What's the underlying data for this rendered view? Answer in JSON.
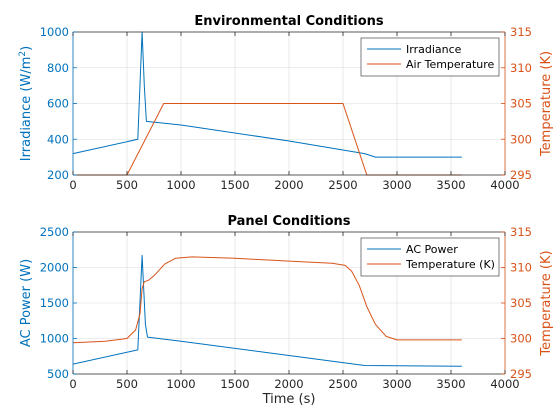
{
  "chart_data": [
    {
      "type": "line",
      "title": "Environmental Conditions",
      "xlabel": "",
      "xlim": [
        0,
        4000
      ],
      "xticks": [
        0,
        500,
        1000,
        1500,
        2000,
        2500,
        3000,
        3500,
        4000
      ],
      "y_left": {
        "label_prefix": "Irradiance (W/m",
        "label_sup": "2",
        "label_suffix": ")",
        "lim": [
          200,
          1000
        ],
        "ticks": [
          200,
          400,
          600,
          800,
          1000
        ],
        "color": "#0072BD"
      },
      "y_right": {
        "label": "Temperature (K)",
        "lim": [
          295,
          315
        ],
        "ticks": [
          295,
          300,
          305,
          310,
          315
        ],
        "color": "#D95319"
      },
      "legend_position": "top-right",
      "grid": true,
      "series": [
        {
          "name": "Irradiance",
          "axis": "left",
          "color": "#0072BD",
          "points": [
            [
              0,
              320
            ],
            [
              600,
              400
            ],
            [
              640,
              1000
            ],
            [
              660,
              700
            ],
            [
              680,
              500
            ],
            [
              1000,
              480
            ],
            [
              2000,
              390
            ],
            [
              2700,
              320
            ],
            [
              2800,
              300
            ],
            [
              3600,
              300
            ]
          ]
        },
        {
          "name": "Air Temperature",
          "axis": "right",
          "color": "#D95319",
          "points": [
            [
              0,
              295
            ],
            [
              500,
              295
            ],
            [
              840,
              305
            ],
            [
              2500,
              305
            ],
            [
              2720,
              295
            ],
            [
              3600,
              295
            ]
          ]
        }
      ]
    },
    {
      "type": "line",
      "title": "Panel Conditions",
      "xlabel": "Time (s)",
      "xlim": [
        0,
        4000
      ],
      "xticks": [
        0,
        500,
        1000,
        1500,
        2000,
        2500,
        3000,
        3500,
        4000
      ],
      "y_left": {
        "label": "AC Power (W)",
        "lim": [
          500,
          2500
        ],
        "ticks": [
          500,
          1000,
          1500,
          2000,
          2500
        ],
        "color": "#0072BD"
      },
      "y_right": {
        "label": "Temperature (K)",
        "lim": [
          295,
          315
        ],
        "ticks": [
          295,
          300,
          305,
          310,
          315
        ],
        "color": "#D95319"
      },
      "legend_position": "top-right",
      "grid": true,
      "series": [
        {
          "name": "AC Power",
          "axis": "left",
          "color": "#0072BD",
          "points": [
            [
              0,
              640
            ],
            [
              600,
              840
            ],
            [
              640,
              2170
            ],
            [
              670,
              1200
            ],
            [
              690,
              1020
            ],
            [
              1000,
              960
            ],
            [
              2000,
              760
            ],
            [
              2700,
              620
            ],
            [
              3600,
              610
            ]
          ]
        },
        {
          "name": "Temperature (K)",
          "axis": "right",
          "color": "#D95319",
          "points": [
            [
              0,
              299.4
            ],
            [
              300,
              299.6
            ],
            [
              500,
              300.0
            ],
            [
              580,
              301.2
            ],
            [
              620,
              303.5
            ],
            [
              640,
              307.0
            ],
            [
              660,
              308.0
            ],
            [
              700,
              308.2
            ],
            [
              760,
              309.0
            ],
            [
              850,
              310.5
            ],
            [
              950,
              311.3
            ],
            [
              1100,
              311.5
            ],
            [
              1500,
              311.3
            ],
            [
              2000,
              310.9
            ],
            [
              2400,
              310.6
            ],
            [
              2520,
              310.3
            ],
            [
              2580,
              309.5
            ],
            [
              2650,
              307.5
            ],
            [
              2720,
              304.5
            ],
            [
              2800,
              302.0
            ],
            [
              2900,
              300.3
            ],
            [
              3000,
              299.8
            ],
            [
              3600,
              299.8
            ]
          ]
        }
      ]
    }
  ]
}
